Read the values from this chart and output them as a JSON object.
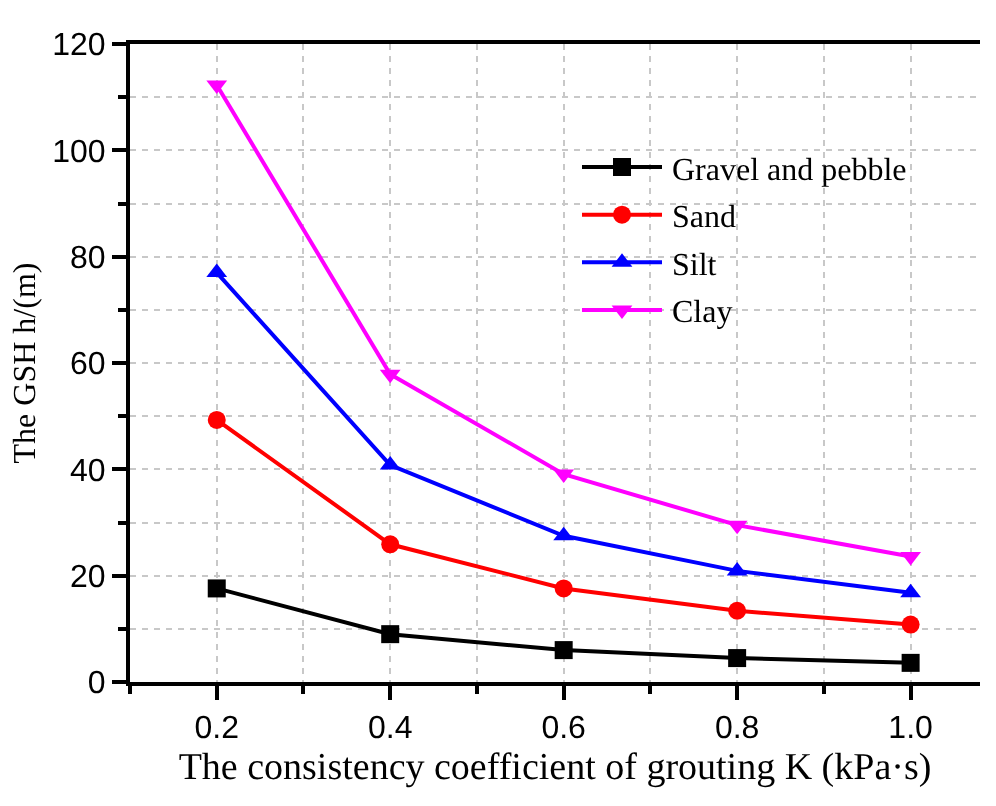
{
  "chart_data": {
    "type": "line",
    "xlabel": "The consistency coefficient of grouting K (kPa·s)",
    "ylabel": "The GSH h/(m)",
    "x": [
      0.2,
      0.4,
      0.6,
      0.8,
      1.0
    ],
    "series": [
      {
        "name": "Gravel and pebble",
        "color": "#000000",
        "marker": "square",
        "values": [
          17.6,
          9.0,
          6.0,
          4.5,
          3.6
        ]
      },
      {
        "name": "Sand",
        "color": "#ff0000",
        "marker": "circle",
        "values": [
          49.3,
          25.9,
          17.6,
          13.4,
          10.8
        ]
      },
      {
        "name": "Silt",
        "color": "#0000ff",
        "marker": "triangle",
        "values": [
          77.0,
          40.8,
          27.5,
          20.9,
          16.8
        ]
      },
      {
        "name": "Clay",
        "color": "#ff00ff",
        "marker": "triangle-down",
        "values": [
          112.3,
          57.9,
          39.1,
          29.5,
          23.6
        ]
      }
    ],
    "xlim": [
      0.1,
      1.08
    ],
    "xticks": [
      0.2,
      0.4,
      0.6,
      0.8,
      {
        "value": 1.0,
        "label": "1.0"
      }
    ],
    "ylim": [
      0,
      120
    ],
    "yticks": [
      0,
      20,
      40,
      60,
      80,
      100,
      120
    ],
    "grid": true,
    "legend": "top right",
    "line_style": "solid"
  }
}
